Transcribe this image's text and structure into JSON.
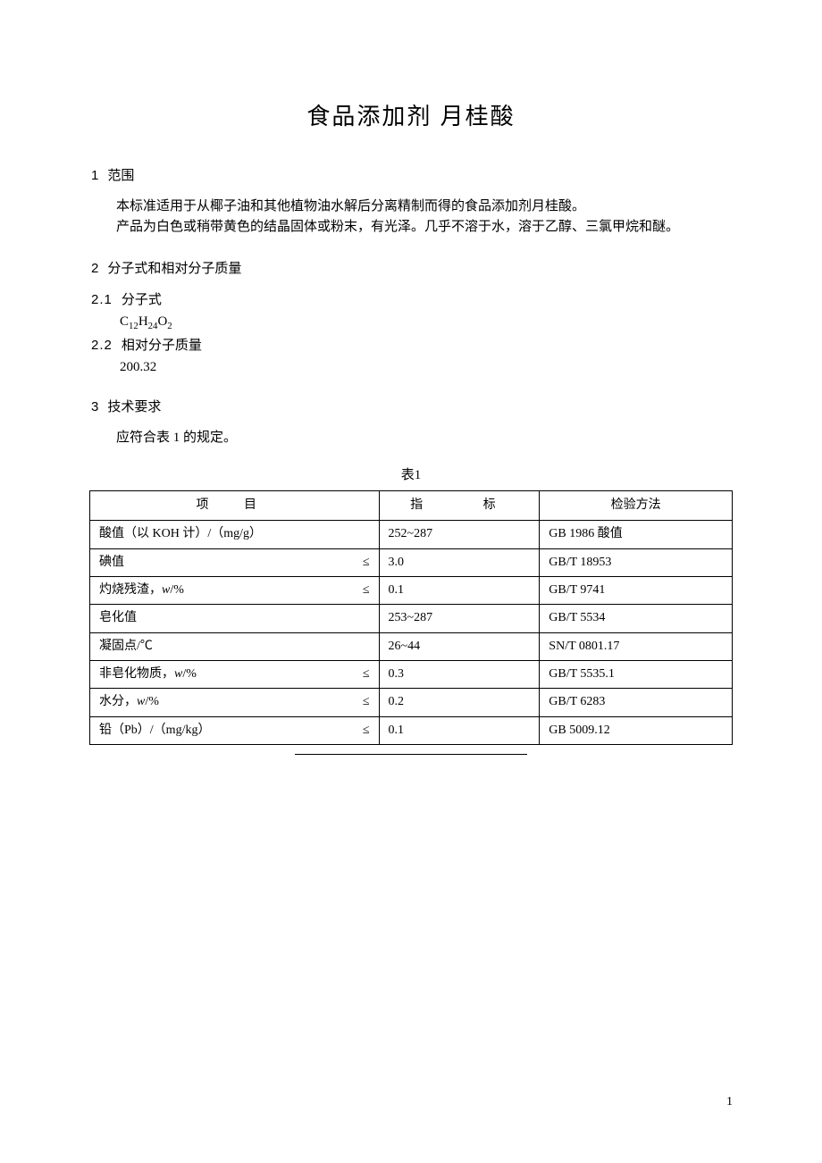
{
  "title": "食品添加剂  月桂酸",
  "sec1": {
    "num": "1",
    "heading": "范围",
    "p1": "本标准适用于从椰子油和其他植物油水解后分离精制而得的食品添加剂月桂酸。",
    "p2": "产品为白色或稍带黄色的结晶固体或粉末，有光泽。几乎不溶于水，溶于乙醇、三氯甲烷和醚。"
  },
  "sec2": {
    "num": "2",
    "heading": "分子式和相对分子质量",
    "sub1_num": "2.1",
    "sub1_heading": "分子式",
    "formula_html": "C<sub>12</sub>H<sub>24</sub>O<sub>2</sub>",
    "sub2_num": "2.2",
    "sub2_heading": "相对分子质量",
    "mass": "200.32"
  },
  "sec3": {
    "num": "3",
    "heading": "技术要求",
    "p1": "应符合表 1 的规定。"
  },
  "table": {
    "caption": "表1",
    "col_widths": {
      "item": "45%",
      "index": "25%",
      "method": "30%"
    },
    "head": {
      "item": "项    目",
      "index": "指    标",
      "method": "检验方法"
    },
    "rows": [
      {
        "item": "酸值（以 KOH 计）/（mg/g）",
        "sym": "",
        "index": "252~287",
        "method": "GB 1986 酸值"
      },
      {
        "item": "碘值",
        "sym": "≤",
        "index": "3.0",
        "method": "GB/T 18953"
      },
      {
        "item_html": "灼烧残渣，<span class=\"italic-w\">w</span>/%",
        "sym": "≤",
        "index": "0.1",
        "method": "GB/T 9741"
      },
      {
        "item": "皂化值",
        "sym": "",
        "index": "253~287",
        "method": "GB/T 5534"
      },
      {
        "item": "凝固点/℃",
        "sym": "",
        "index": "26~44",
        "method": "SN/T 0801.17"
      },
      {
        "item_html": "非皂化物质，<span class=\"italic-w\">w</span>/%",
        "sym": "≤",
        "index": "0.3",
        "method": "GB/T 5535.1"
      },
      {
        "item_html": "水分，<span class=\"italic-w\">w</span>/%",
        "sym": "≤",
        "index": "0.2",
        "method": "GB/T 6283"
      },
      {
        "item": "铅（Pb）/（mg/kg）",
        "sym": "≤",
        "index": "0.1",
        "method": "GB 5009.12"
      }
    ]
  },
  "page_number": "1"
}
